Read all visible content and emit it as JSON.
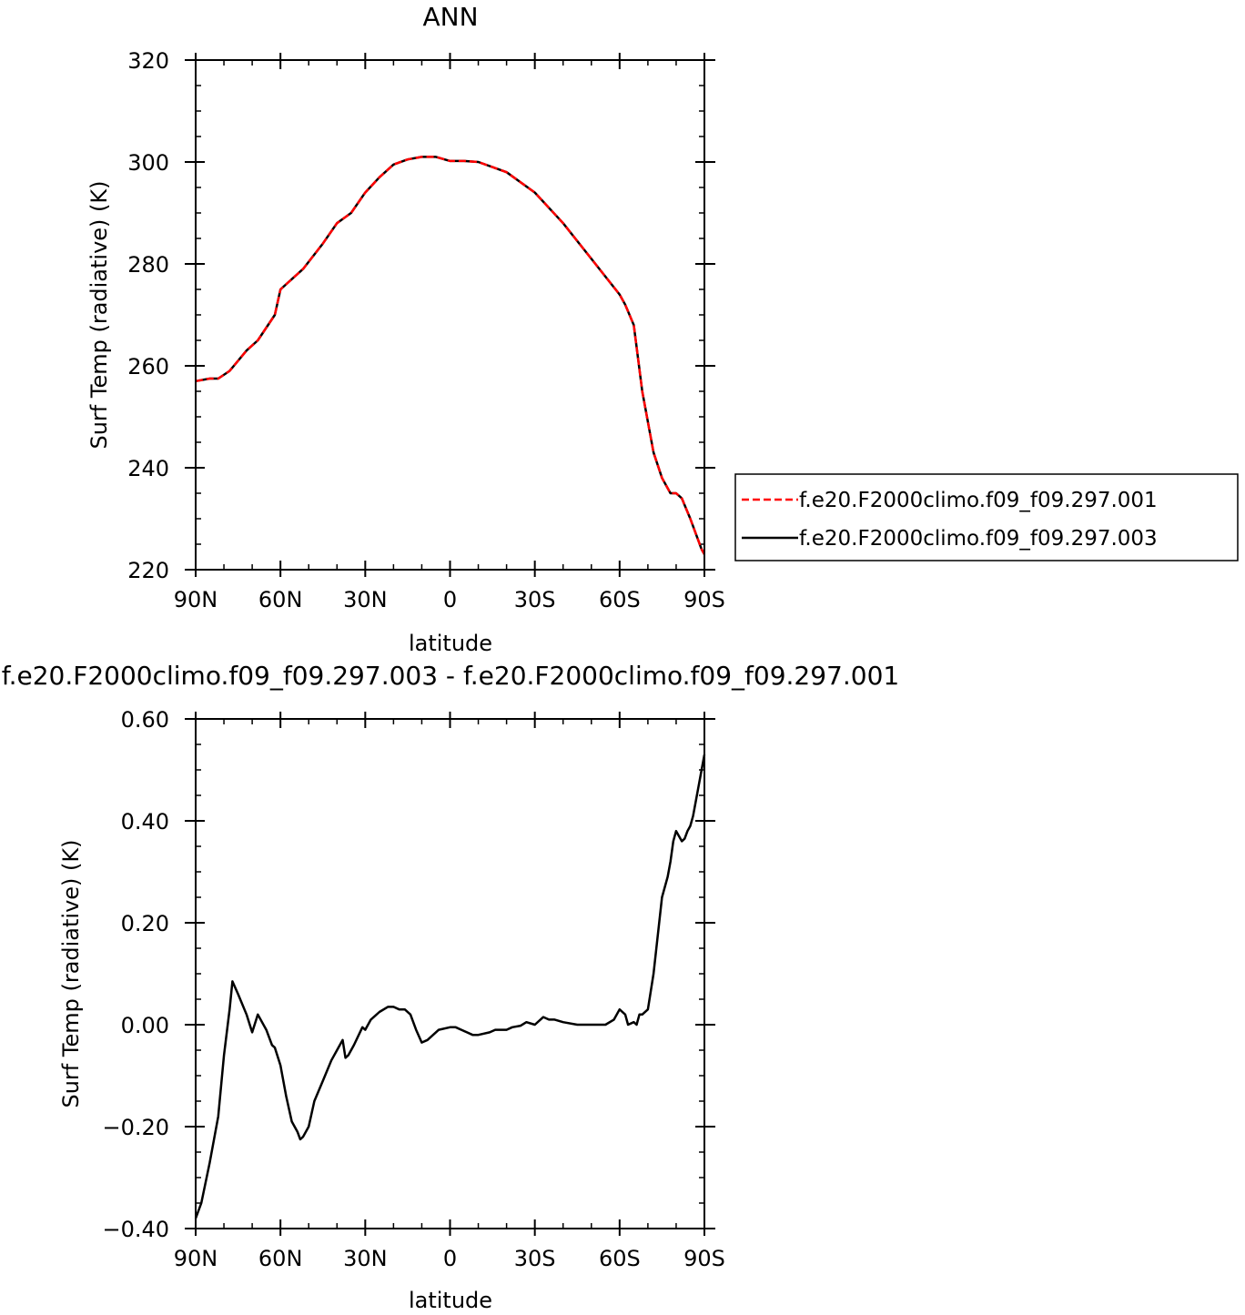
{
  "chart_data": [
    {
      "type": "line",
      "title": "ANN",
      "xlabel": "latitude",
      "ylabel": "Surf Temp (radiative) (K)",
      "xlim": [
        90,
        -90
      ],
      "ylim": [
        220,
        320
      ],
      "x_ticks": [
        90,
        60,
        30,
        0,
        -30,
        -60,
        -90
      ],
      "x_tick_labels": [
        "90N",
        "60N",
        "30N",
        "0",
        "30S",
        "60S",
        "90S"
      ],
      "y_ticks": [
        220,
        240,
        260,
        280,
        300,
        320
      ],
      "y_tick_labels": [
        "220",
        "240",
        "260",
        "280",
        "300",
        "320"
      ],
      "grid": false,
      "legend": "right",
      "series": [
        {
          "name": "f.e20.F2000climo.f09_f09.297.001",
          "color": "#ff0000",
          "dash": "dashed",
          "x": [
            90,
            85,
            82,
            78,
            72,
            68,
            62,
            60,
            52,
            45,
            40,
            35,
            30,
            25,
            20,
            15,
            10,
            5,
            0,
            -5,
            -10,
            -20,
            -30,
            -40,
            -50,
            -55,
            -60,
            -62,
            -65,
            -68,
            -72,
            -75,
            -78,
            -80,
            -82,
            -85,
            -87,
            -89,
            -90
          ],
          "values": [
            257,
            257.5,
            257.5,
            259,
            263,
            265,
            270,
            275,
            279,
            284,
            288,
            290,
            294,
            297,
            299.5,
            300.5,
            301,
            301,
            300.2,
            300.2,
            300,
            298,
            294,
            288,
            281,
            277.5,
            274,
            272,
            268,
            255,
            243,
            238,
            235,
            235,
            234,
            230,
            227,
            224,
            223
          ]
        },
        {
          "name": "f.e20.F2000climo.f09_f09.297.003",
          "color": "#000000",
          "dash": "solid",
          "x": [
            90,
            85,
            82,
            78,
            72,
            68,
            62,
            60,
            52,
            45,
            40,
            35,
            30,
            25,
            20,
            15,
            10,
            5,
            0,
            -5,
            -10,
            -20,
            -30,
            -40,
            -50,
            -55,
            -60,
            -62,
            -65,
            -68,
            -72,
            -75,
            -78,
            -80,
            -82,
            -85,
            -87,
            -89,
            -90
          ],
          "values": [
            257,
            257.5,
            257.5,
            259,
            263,
            265,
            270,
            275,
            279,
            284,
            288,
            290,
            294,
            297,
            299.5,
            300.5,
            301,
            301,
            300.2,
            300.2,
            300,
            298,
            294,
            288,
            281,
            277.5,
            274,
            272,
            268,
            255,
            243,
            238,
            235,
            235,
            234,
            230,
            227,
            224,
            223
          ]
        }
      ]
    },
    {
      "type": "line",
      "title": "f.e20.F2000climo.f09_f09.297.003 - f.e20.F2000climo.f09_f09.297.001",
      "xlabel": "latitude",
      "ylabel": "Surf Temp (radiative) (K)",
      "xlim": [
        90,
        -90
      ],
      "ylim": [
        -0.4,
        0.6
      ],
      "x_ticks": [
        90,
        60,
        30,
        0,
        -30,
        -60,
        -90
      ],
      "x_tick_labels": [
        "90N",
        "60N",
        "30N",
        "0",
        "30S",
        "60S",
        "90S"
      ],
      "y_ticks": [
        -0.4,
        -0.2,
        0.0,
        0.2,
        0.4,
        0.6
      ],
      "y_tick_labels": [
        "−0.40",
        "−0.20",
        "0.00",
        "0.20",
        "0.40",
        "0.60"
      ],
      "grid": false,
      "series": [
        {
          "color": "#000000",
          "dash": "solid",
          "x": [
            90,
            88,
            85,
            82,
            80,
            78,
            77,
            75,
            72,
            70,
            68,
            65,
            63,
            62,
            60,
            58,
            56,
            54,
            53,
            52,
            50,
            48,
            45,
            42,
            40,
            39,
            38,
            37,
            36,
            34,
            31,
            30,
            28,
            25,
            22,
            20,
            18,
            16,
            14,
            12,
            10,
            8,
            6,
            4,
            0,
            -2,
            -4,
            -6,
            -8,
            -10,
            -14,
            -16,
            -20,
            -22,
            -25,
            -27,
            -30,
            -33,
            -35,
            -37,
            -40,
            -45,
            -50,
            -55,
            -58,
            -60,
            -62,
            -63,
            -65,
            -66,
            -67,
            -68,
            -70,
            -72,
            -73,
            -75,
            -77,
            -78,
            -79,
            -80,
            -82,
            -83,
            -84,
            -85,
            -86,
            -87,
            -88,
            -89,
            -90
          ],
          "values": [
            -0.38,
            -0.35,
            -0.27,
            -0.18,
            -0.06,
            0.03,
            0.085,
            0.06,
            0.02,
            -0.015,
            0.02,
            -0.01,
            -0.04,
            -0.045,
            -0.08,
            -0.14,
            -0.19,
            -0.21,
            -0.225,
            -0.22,
            -0.2,
            -0.15,
            -0.11,
            -0.07,
            -0.05,
            -0.04,
            -0.03,
            -0.065,
            -0.06,
            -0.04,
            -0.005,
            -0.01,
            0.01,
            0.025,
            0.035,
            0.035,
            0.03,
            0.03,
            0.02,
            -0.01,
            -0.035,
            -0.03,
            -0.02,
            -0.01,
            -0.005,
            -0.005,
            -0.01,
            -0.015,
            -0.02,
            -0.02,
            -0.015,
            -0.01,
            -0.01,
            -0.005,
            -0.002,
            0.005,
            0.0,
            0.015,
            0.01,
            0.01,
            0.005,
            0.0,
            0.0,
            0.0,
            0.01,
            0.03,
            0.02,
            0.0,
            0.005,
            0.0,
            0.02,
            0.02,
            0.03,
            0.1,
            0.15,
            0.25,
            0.29,
            0.32,
            0.36,
            0.38,
            0.36,
            0.365,
            0.38,
            0.39,
            0.41,
            0.44,
            0.47,
            0.5,
            0.53
          ]
        }
      ]
    }
  ]
}
